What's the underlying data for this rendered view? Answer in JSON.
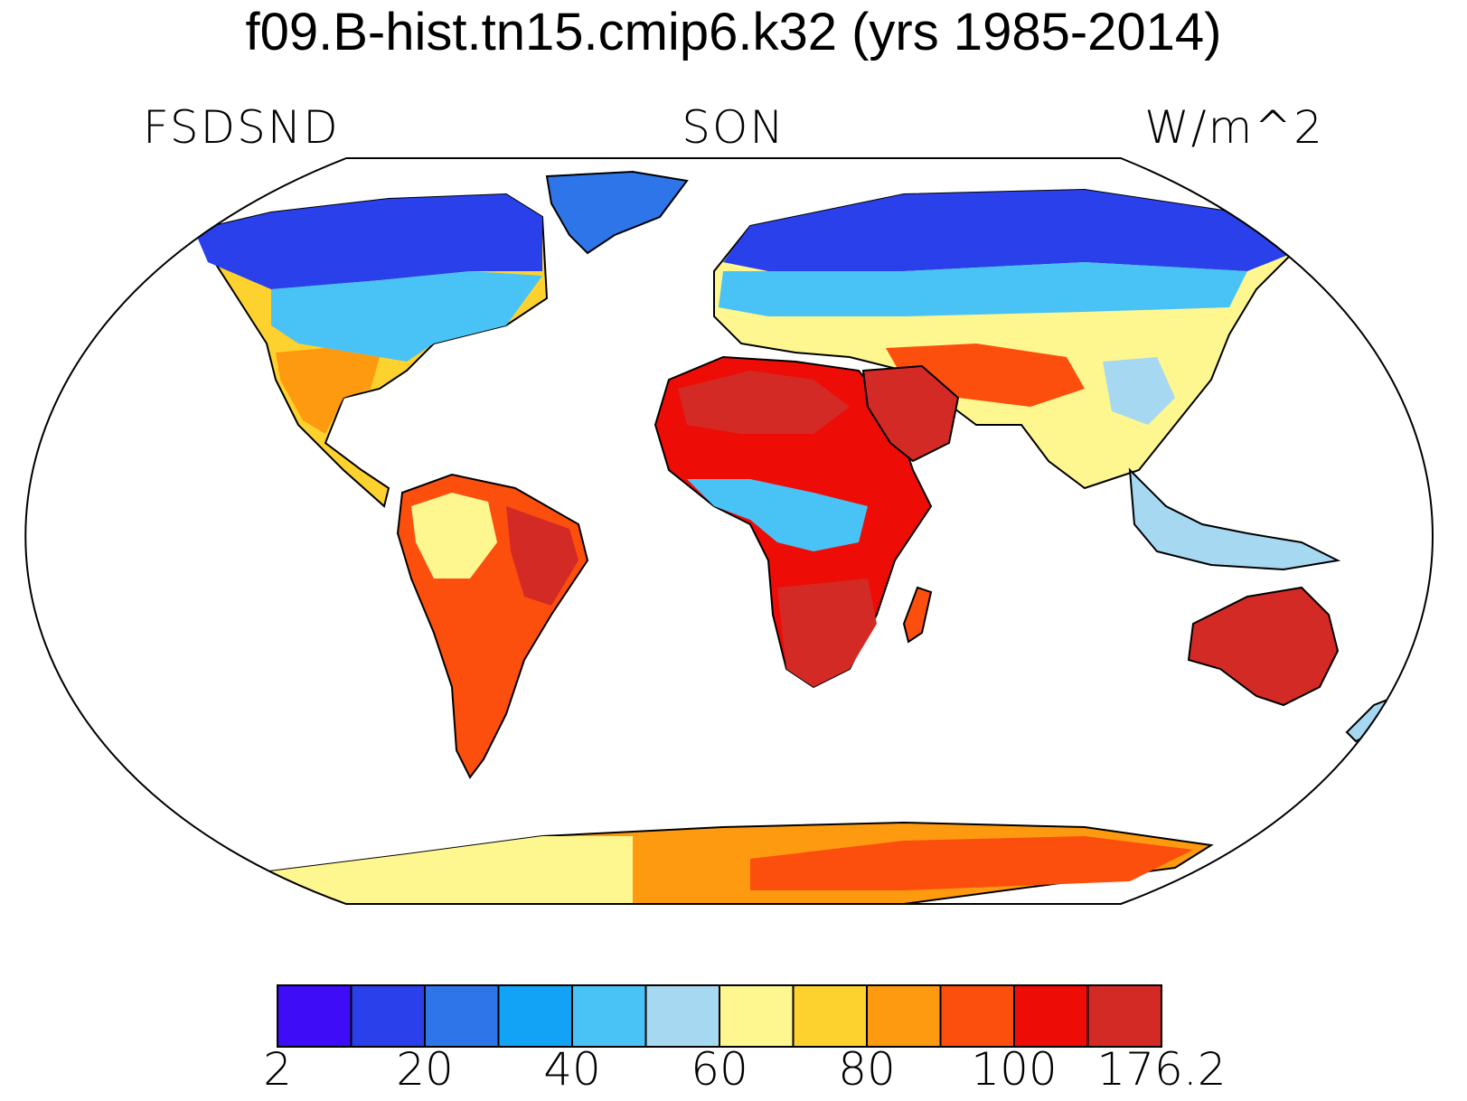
{
  "title": "f09.B-hist.tn15.cmip6.k32 (yrs 1985-2014)",
  "left_label": "FSDSND",
  "center_label": "SON",
  "right_label": "W/m^2",
  "colorbar": {
    "colors": [
      "#3e0cf6",
      "#2940ea",
      "#2d75e9",
      "#13a3f6",
      "#49c2f5",
      "#a6d8f2",
      "#fef68f",
      "#fed22e",
      "#fe9a0f",
      "#fc4f0d",
      "#ee0c06",
      "#d42a26"
    ],
    "tick_labels": [
      "2",
      "20",
      "40",
      "60",
      "80",
      "100",
      "176.2"
    ]
  }
}
